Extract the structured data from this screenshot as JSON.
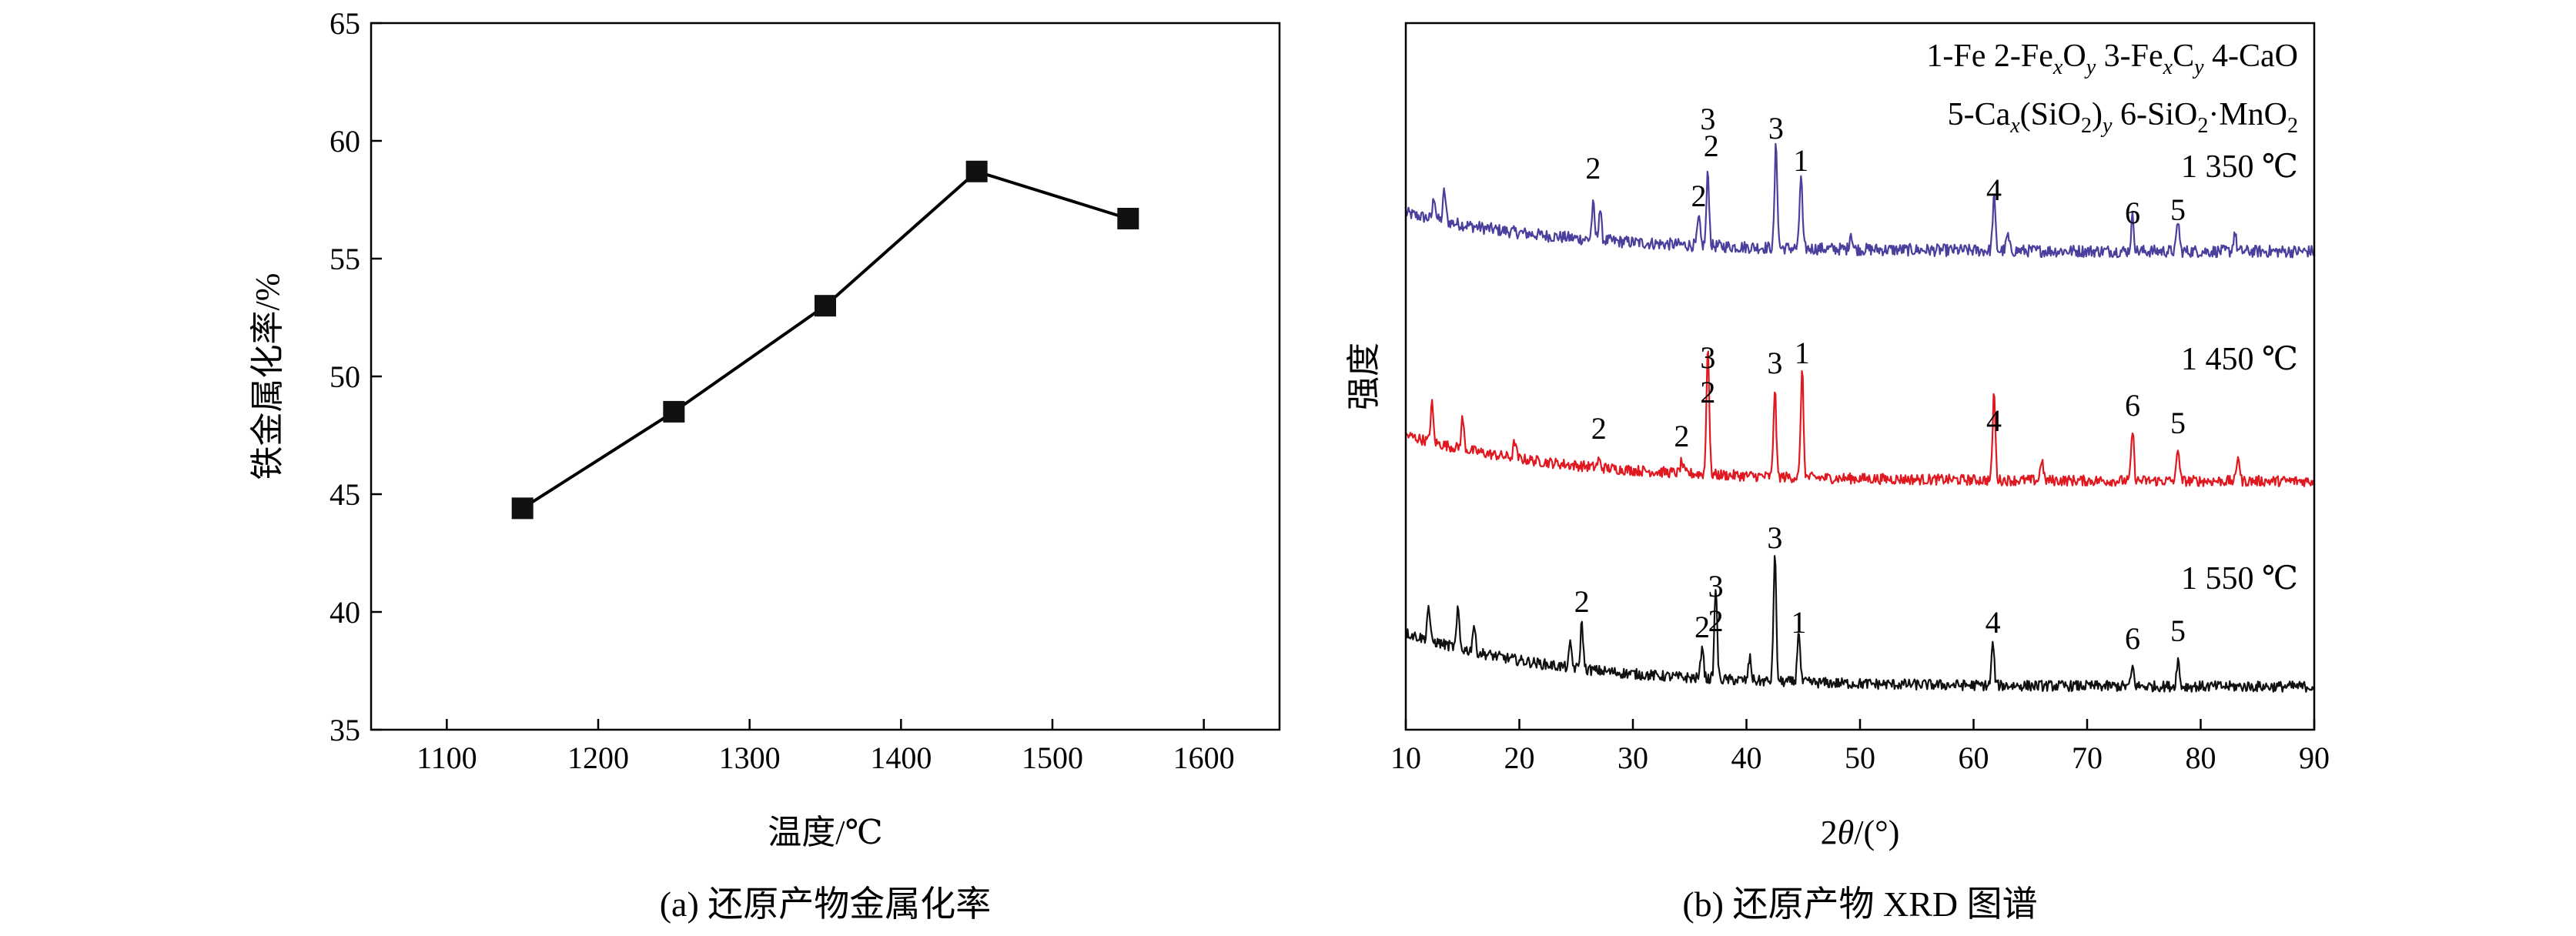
{
  "chart_data": [
    {
      "type": "line",
      "caption": "(a) 还原产物金属化率",
      "xlabel": "温度/℃",
      "ylabel": "铁金属化率/%",
      "xlim": [
        1050,
        1650
      ],
      "ylim": [
        35,
        65
      ],
      "xticks": [
        1100,
        1200,
        1300,
        1400,
        1500,
        1600
      ],
      "yticks": [
        35,
        40,
        45,
        50,
        55,
        60,
        65
      ],
      "marker": "square",
      "grid": false,
      "series": [
        {
          "x": [
            1150,
            1250,
            1350,
            1450,
            1550
          ],
          "y": [
            44.4,
            48.5,
            53.0,
            58.7,
            56.7
          ]
        }
      ]
    },
    {
      "type": "line",
      "caption": "(b) 还原产物 XRD 图谱",
      "xlabel": "2θ/(°)",
      "ylabel": "强度",
      "xlim": [
        10,
        90
      ],
      "xticks": [
        10,
        20,
        30,
        40,
        50,
        60,
        70,
        80,
        90
      ],
      "grid": false,
      "legend_position": "top-right",
      "legend_lines": [
        "1-Fe 2-FexOy 3-FexCy 4-CaO",
        "5-Cax(SiO2)y 6-SiO2·MnO2"
      ],
      "series": [
        {
          "name": "1 350 ℃",
          "color": "#4b3f9e",
          "peaks": [
            {
              "label": "2",
              "x": 26.5
            },
            {
              "label": "2",
              "x": 35.8
            },
            {
              "label": "3",
              "x": 36.6
            },
            {
              "label": "2",
              "x": 36.9
            },
            {
              "label": "3",
              "x": 42.6
            },
            {
              "label": "1",
              "x": 44.8
            },
            {
              "label": "4",
              "x": 61.8
            },
            {
              "label": "6",
              "x": 74.0
            },
            {
              "label": "5",
              "x": 78.0
            }
          ]
        },
        {
          "name": "1 450 ℃",
          "color": "#e0181f",
          "peaks": [
            {
              "label": "2",
              "x": 27.0
            },
            {
              "label": "2",
              "x": 34.3
            },
            {
              "label": "3",
              "x": 36.6
            },
            {
              "label": "2",
              "x": 36.6
            },
            {
              "label": "3",
              "x": 42.5
            },
            {
              "label": "1",
              "x": 44.9
            },
            {
              "label": "4",
              "x": 61.8
            },
            {
              "label": "6",
              "x": 74.0
            },
            {
              "label": "5",
              "x": 78.0
            }
          ]
        },
        {
          "name": "1 550 ℃",
          "color": "#111111",
          "peaks": [
            {
              "label": "2",
              "x": 25.5
            },
            {
              "label": "2",
              "x": 36.1
            },
            {
              "label": "3",
              "x": 37.3
            },
            {
              "label": "2",
              "x": 37.3
            },
            {
              "label": "3",
              "x": 42.5
            },
            {
              "label": "1",
              "x": 44.6
            },
            {
              "label": "4",
              "x": 61.7
            },
            {
              "label": "6",
              "x": 74.0
            },
            {
              "label": "5",
              "x": 78.0
            }
          ]
        }
      ]
    }
  ]
}
